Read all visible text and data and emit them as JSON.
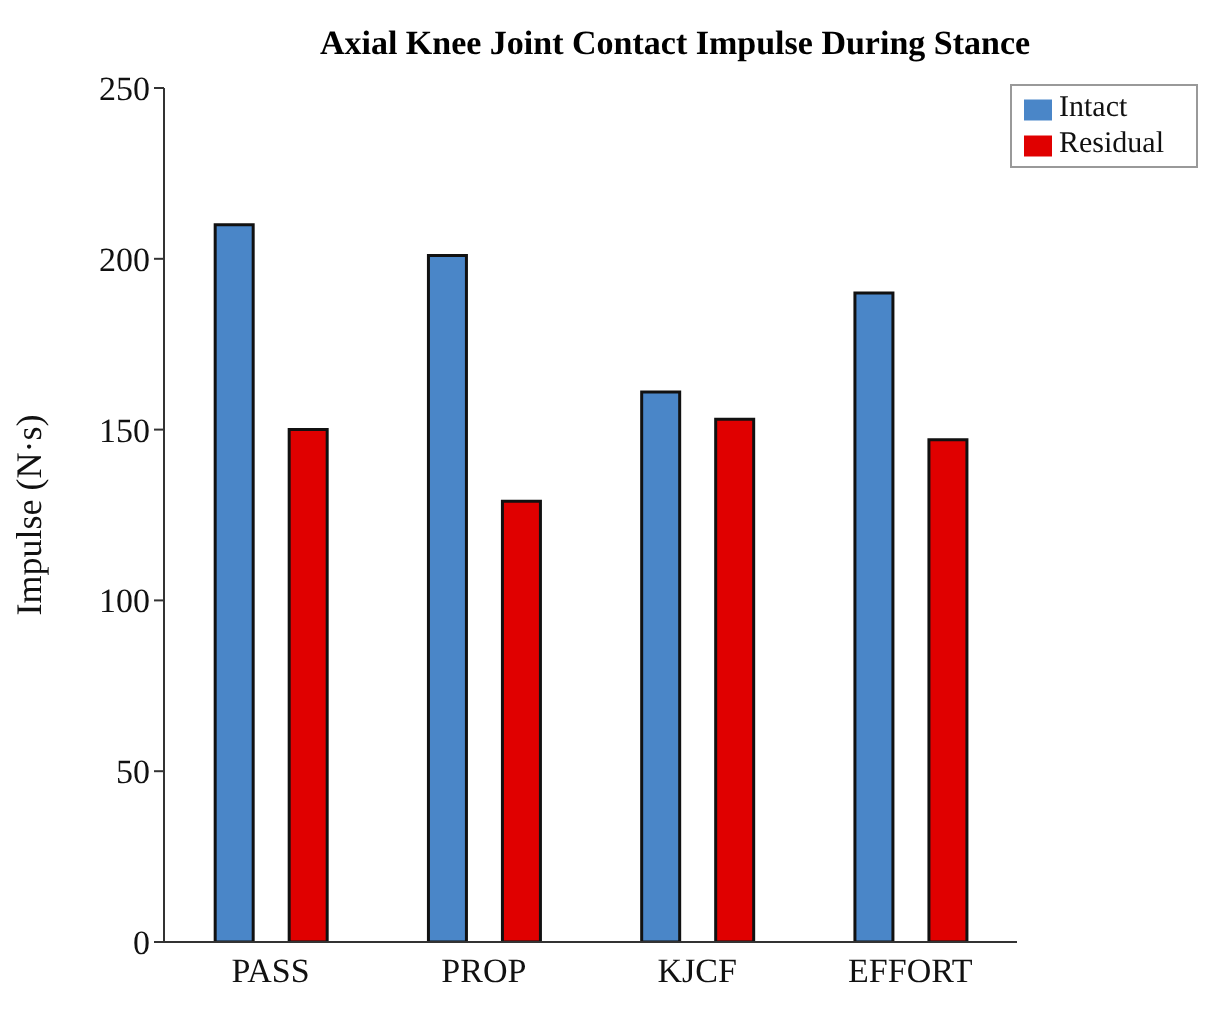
{
  "chart_data": {
    "type": "bar",
    "title": "Axial Knee Joint Contact Impulse During Stance",
    "ylabel": "Impulse (N·s)",
    "categories": [
      "PASS",
      "PROP",
      "KJCF",
      "EFFORT"
    ],
    "series": [
      {
        "name": "Intact",
        "color": "#4a86c8",
        "values": [
          210,
          201,
          161,
          190
        ]
      },
      {
        "name": "Residual",
        "color": "#e00000",
        "values": [
          150,
          129,
          153,
          147
        ]
      }
    ],
    "ylim": [
      0,
      250
    ],
    "yticks": [
      0,
      50,
      100,
      150,
      200,
      250
    ],
    "grid": false,
    "legend": "top right"
  }
}
